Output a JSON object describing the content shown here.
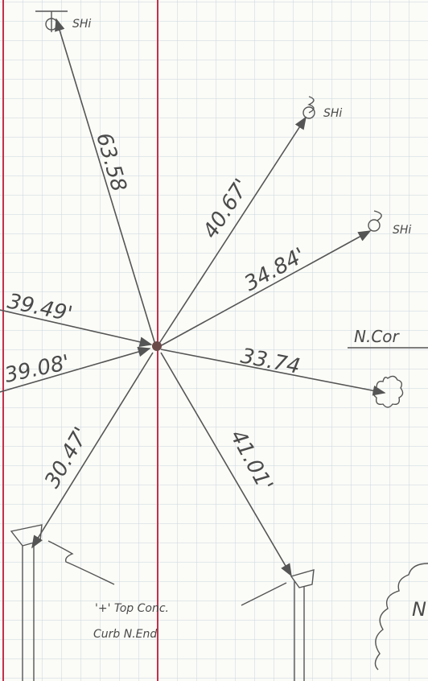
{
  "points": [
    {
      "label": "SHi"
    },
    {
      "label": "SHi"
    },
    {
      "label": "SHi"
    }
  ],
  "distances": [
    "63.58",
    "40.67'",
    "34.84'",
    "39.49'",
    "39.08'",
    "33.74",
    "30.47'",
    "41.01'"
  ],
  "notes": {
    "corner": "N.Cor",
    "curb_line1": "'+' Top Conc.",
    "curb_line2": "Curb N.End",
    "partial": "N"
  }
}
